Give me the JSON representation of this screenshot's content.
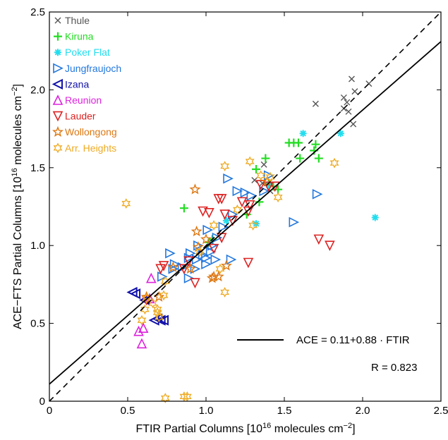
{
  "chart_data": {
    "type": "scatter",
    "xlabel": "FTIR Partial Columns [10",
    "xlabel_exp": "16",
    "xlabel_tail": " molecules cm",
    "xlabel_exp2": "−2",
    "xlabel_end": "]",
    "ylabel": "ACE−FTS Partial Columns [10",
    "ylabel_exp": "16",
    "ylabel_tail": " molecules cm",
    "ylabel_exp2": "−2",
    "ylabel_end": "]",
    "xlim": [
      0,
      2.5
    ],
    "ylim": [
      0,
      2.5
    ],
    "xticks": [
      "0",
      "0.5",
      "1.0",
      "1.5",
      "2.0",
      "2.5"
    ],
    "yticks": [
      "0",
      "0.5",
      "1.0",
      "1.5",
      "2.0",
      "2.5"
    ],
    "legend_position": "top-left",
    "fit_line": {
      "intercept": 0.11,
      "slope": 0.88,
      "label": "ACE = 0.11+0.88 · FTIR"
    },
    "one_to_one_line": true,
    "r_label": "R = 0.823",
    "series": [
      {
        "name": "Thule",
        "marker": "x",
        "color": "#555555",
        "points": [
          [
            1.7,
            1.91
          ],
          [
            1.88,
            1.95
          ],
          [
            1.9,
            1.92
          ],
          [
            1.88,
            1.88
          ],
          [
            1.91,
            1.86
          ],
          [
            1.93,
            2.07
          ],
          [
            1.95,
            1.99
          ],
          [
            1.94,
            1.78
          ],
          [
            2.04,
            2.04
          ],
          [
            1.37,
            1.52
          ],
          [
            1.31,
            1.42
          ],
          [
            1.41,
            1.35
          ],
          [
            1.36,
            1.4
          ]
        ]
      },
      {
        "name": "Kiruna",
        "marker": "plus",
        "color": "#22dd22",
        "points": [
          [
            0.86,
            1.24
          ],
          [
            1.02,
            1.02
          ],
          [
            1.04,
            1.04
          ],
          [
            1.26,
            1.2
          ],
          [
            1.32,
            1.49
          ],
          [
            1.34,
            1.28
          ],
          [
            1.38,
            1.56
          ],
          [
            1.4,
            1.4
          ],
          [
            1.43,
            1.38
          ],
          [
            1.46,
            1.36
          ],
          [
            1.53,
            1.66
          ],
          [
            1.56,
            1.66
          ],
          [
            1.59,
            1.66
          ],
          [
            1.6,
            1.56
          ],
          [
            1.69,
            1.61
          ],
          [
            1.7,
            1.65
          ],
          [
            1.72,
            1.56
          ]
        ]
      },
      {
        "name": "Poker Flat",
        "marker": "asterisk",
        "color": "#22ddee",
        "points": [
          [
            1.13,
            1.16
          ],
          [
            1.32,
            1.14
          ],
          [
            1.4,
            1.39
          ],
          [
            1.62,
            1.72
          ],
          [
            1.86,
            1.72
          ],
          [
            2.08,
            1.18
          ]
        ]
      },
      {
        "name": "Jungfraujoch",
        "marker": "tri-right",
        "color": "#2277dd",
        "points": [
          [
            0.72,
            0.8
          ],
          [
            0.77,
            0.95
          ],
          [
            0.79,
            0.85
          ],
          [
            0.8,
            0.88
          ],
          [
            0.85,
            0.86
          ],
          [
            0.89,
            0.79
          ],
          [
            0.89,
            0.92
          ],
          [
            0.9,
            0.95
          ],
          [
            0.94,
            0.91
          ],
          [
            0.98,
            0.94
          ],
          [
            1.0,
            0.88
          ],
          [
            1.01,
            1.1
          ],
          [
            1.03,
            0.96
          ],
          [
            1.04,
            1.0
          ],
          [
            1.06,
            0.91
          ],
          [
            1.07,
            1.05
          ],
          [
            1.11,
            1.12
          ],
          [
            1.14,
            1.43
          ],
          [
            1.17,
            1.2
          ],
          [
            1.2,
            1.35
          ],
          [
            1.25,
            1.34
          ],
          [
            1.29,
            1.32
          ],
          [
            1.37,
            1.35
          ],
          [
            1.4,
            1.45
          ],
          [
            1.56,
            1.15
          ],
          [
            1.71,
            1.33
          ],
          [
            1.16,
            0.91
          ],
          [
            0.93,
            0.85
          ],
          [
            0.95,
            1.0
          ],
          [
            1.0,
            0.92
          ]
        ]
      },
      {
        "name": "Izana",
        "marker": "tri-left",
        "color": "#1111aa",
        "points": [
          [
            0.53,
            0.7
          ],
          [
            0.55,
            0.69
          ],
          [
            0.61,
            0.65
          ],
          [
            0.67,
            0.52
          ],
          [
            0.69,
            0.53
          ],
          [
            0.71,
            0.52
          ],
          [
            0.73,
            0.52
          ]
        ]
      },
      {
        "name": "Reunion",
        "marker": "tri-up",
        "color": "#dd22dd",
        "points": [
          [
            0.57,
            0.45
          ],
          [
            0.59,
            0.37
          ],
          [
            0.6,
            0.47
          ],
          [
            0.64,
            0.66
          ],
          [
            0.65,
            0.79
          ]
        ]
      },
      {
        "name": "Lauder",
        "marker": "tri-down",
        "color": "#dd2222",
        "points": [
          [
            0.71,
            0.85
          ],
          [
            0.73,
            0.87
          ],
          [
            0.86,
            0.85
          ],
          [
            0.89,
            0.9
          ],
          [
            0.93,
            0.76
          ],
          [
            0.98,
            1.22
          ],
          [
            1.02,
            1.21
          ],
          [
            1.08,
            1.3
          ],
          [
            1.1,
            1.3
          ],
          [
            1.12,
            1.2
          ],
          [
            1.17,
            1.16
          ],
          [
            1.23,
            1.28
          ],
          [
            1.27,
            1.22
          ],
          [
            1.27,
            0.89
          ],
          [
            1.28,
            1.26
          ],
          [
            1.35,
            1.39
          ],
          [
            1.4,
            1.38
          ],
          [
            1.44,
            1.38
          ],
          [
            1.72,
            1.04
          ],
          [
            1.79,
            1.0
          ],
          [
            1.1,
            1.05
          ],
          [
            1.05,
            0.98
          ],
          [
            0.62,
            0.65
          ]
        ]
      },
      {
        "name": "Wollongong",
        "marker": "star",
        "color": "#dd7711",
        "points": [
          [
            0.62,
            0.67
          ],
          [
            0.7,
            0.67
          ],
          [
            0.79,
            0.86
          ],
          [
            0.9,
            0.85
          ],
          [
            0.93,
            1.36
          ],
          [
            0.94,
            1.09
          ],
          [
            0.95,
            0.99
          ],
          [
            1.0,
            1.04
          ],
          [
            1.05,
            0.8
          ],
          [
            1.04,
            0.79
          ],
          [
            1.08,
            0.8
          ],
          [
            1.13,
            0.87
          ],
          [
            1.39,
            1.41
          ]
        ]
      },
      {
        "name": "Arr. Heights",
        "marker": "hexagram",
        "color": "#eeaa22",
        "points": [
          [
            0.49,
            1.27
          ],
          [
            0.59,
            0.52
          ],
          [
            0.61,
            0.59
          ],
          [
            0.62,
            0.66
          ],
          [
            0.66,
            0.63
          ],
          [
            0.69,
            0.59
          ],
          [
            0.7,
            0.54
          ],
          [
            0.73,
            0.68
          ],
          [
            0.74,
            0.77
          ],
          [
            0.74,
            0.02
          ],
          [
            0.86,
            0.03
          ],
          [
            0.88,
            0.03
          ],
          [
            0.96,
            0.96
          ],
          [
            1.05,
            1.13
          ],
          [
            1.09,
            0.85
          ],
          [
            1.12,
            1.51
          ],
          [
            1.12,
            0.7
          ],
          [
            1.2,
            1.23
          ],
          [
            1.28,
            1.54
          ],
          [
            1.3,
            1.13
          ],
          [
            1.35,
            1.45
          ],
          [
            1.41,
            1.44
          ],
          [
            1.46,
            1.31
          ],
          [
            1.82,
            1.53
          ],
          [
            0.69,
            0.57
          ]
        ]
      }
    ]
  }
}
